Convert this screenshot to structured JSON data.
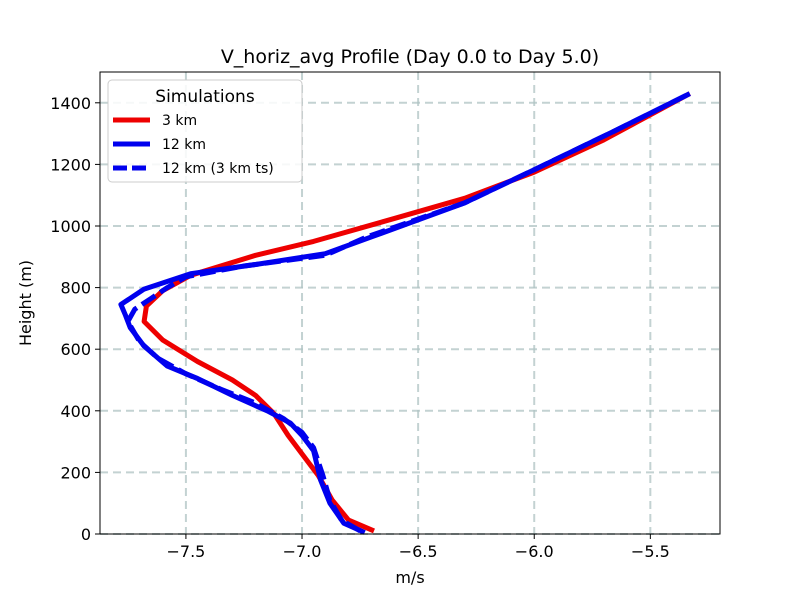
{
  "chart_data": {
    "type": "line",
    "title": "V_horiz_avg Profile (Day 0.0 to Day 5.0)",
    "xlabel": "m/s",
    "ylabel": "Height (m)",
    "xlim": [
      -7.87,
      -5.2
    ],
    "ylim": [
      0,
      1500
    ],
    "xticks": [
      -7.5,
      -7.0,
      -6.5,
      -6.0,
      -5.5
    ],
    "xtick_labels": [
      "−7.5",
      "−7.0",
      "−6.5",
      "−6.0",
      "−5.5"
    ],
    "yticks": [
      0,
      200,
      400,
      600,
      800,
      1000,
      1200,
      1400
    ],
    "ytick_labels": [
      "0",
      "200",
      "400",
      "600",
      "800",
      "1000",
      "1200",
      "1400"
    ],
    "grid": true,
    "legend": {
      "title": "Simulations",
      "position": "top-left"
    },
    "series": [
      {
        "name": "3 km",
        "color": "#ee0000",
        "style": "solid",
        "points": [
          [
            -6.69,
            10
          ],
          [
            -6.8,
            45
          ],
          [
            -6.87,
            110
          ],
          [
            -6.93,
            190
          ],
          [
            -7.0,
            260
          ],
          [
            -7.06,
            320
          ],
          [
            -7.12,
            390
          ],
          [
            -7.2,
            450
          ],
          [
            -7.3,
            500
          ],
          [
            -7.45,
            560
          ],
          [
            -7.6,
            630
          ],
          [
            -7.68,
            690
          ],
          [
            -7.67,
            740
          ],
          [
            -7.6,
            790
          ],
          [
            -7.48,
            840
          ],
          [
            -7.2,
            905
          ],
          [
            -6.95,
            950
          ],
          [
            -6.6,
            1025
          ],
          [
            -6.3,
            1090
          ],
          [
            -6.0,
            1175
          ],
          [
            -5.7,
            1280
          ],
          [
            -5.33,
            1430
          ]
        ]
      },
      {
        "name": "12 km",
        "color": "#0000ee",
        "style": "solid",
        "points": [
          [
            -6.73,
            5
          ],
          [
            -6.82,
            35
          ],
          [
            -6.88,
            100
          ],
          [
            -6.92,
            175
          ],
          [
            -6.95,
            270
          ],
          [
            -7.0,
            320
          ],
          [
            -7.05,
            360
          ],
          [
            -7.15,
            400
          ],
          [
            -7.3,
            450
          ],
          [
            -7.45,
            505
          ],
          [
            -7.58,
            545
          ],
          [
            -7.68,
            610
          ],
          [
            -7.74,
            670
          ],
          [
            -7.76,
            710
          ],
          [
            -7.78,
            745
          ],
          [
            -7.68,
            795
          ],
          [
            -7.48,
            845
          ],
          [
            -7.2,
            875
          ],
          [
            -6.9,
            910
          ],
          [
            -6.7,
            965
          ],
          [
            -6.3,
            1075
          ],
          [
            -5.98,
            1190
          ],
          [
            -5.65,
            1310
          ],
          [
            -5.33,
            1430
          ]
        ]
      },
      {
        "name": "12 km (3 km ts)",
        "color": "#0000ee",
        "style": "dashed",
        "points": [
          [
            -6.75,
            10
          ],
          [
            -6.83,
            45
          ],
          [
            -6.88,
            110
          ],
          [
            -6.91,
            190
          ],
          [
            -6.95,
            280
          ],
          [
            -7.0,
            330
          ],
          [
            -7.08,
            375
          ],
          [
            -7.2,
            425
          ],
          [
            -7.35,
            470
          ],
          [
            -7.5,
            520
          ],
          [
            -7.62,
            570
          ],
          [
            -7.7,
            625
          ],
          [
            -7.75,
            690
          ],
          [
            -7.72,
            730
          ],
          [
            -7.65,
            765
          ],
          [
            -7.58,
            800
          ],
          [
            -7.5,
            835
          ],
          [
            -7.25,
            870
          ],
          [
            -6.9,
            905
          ],
          [
            -6.72,
            965
          ],
          [
            -6.3,
            1075
          ],
          [
            -5.98,
            1190
          ],
          [
            -5.65,
            1310
          ],
          [
            -5.33,
            1430
          ]
        ]
      }
    ]
  }
}
